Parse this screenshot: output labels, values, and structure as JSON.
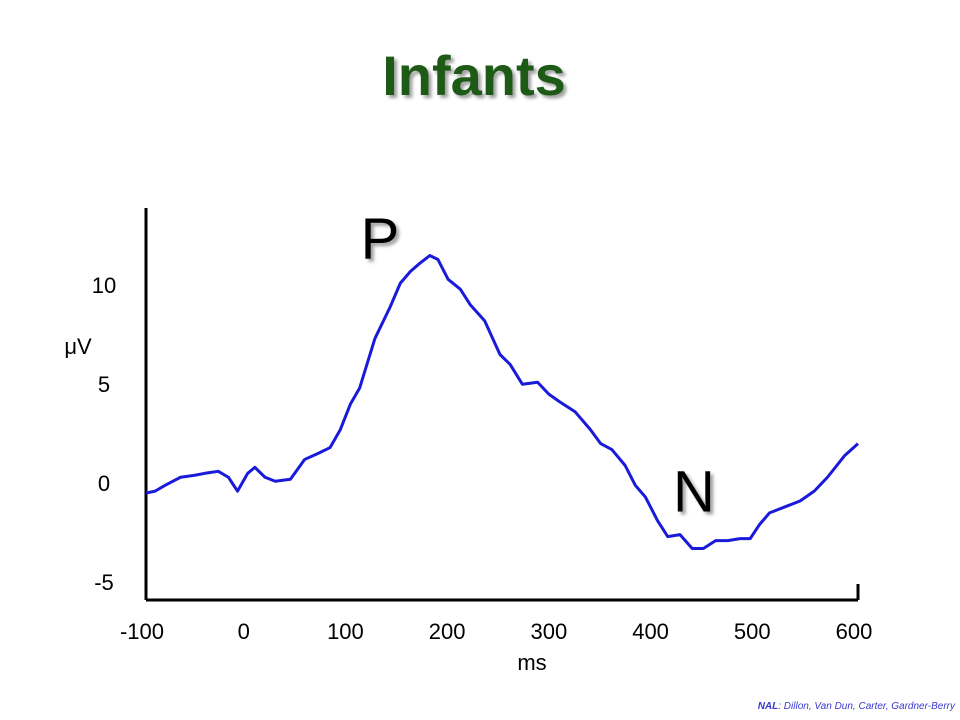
{
  "chart_data": {
    "type": "line",
    "title": "Infants",
    "x_label": "ms",
    "y_label": "μV",
    "annotations": [
      "P",
      "N"
    ],
    "source": {
      "org": "NAL",
      "text": ": Dillon, Van Dun, Carter, Gardner-Berry"
    },
    "xlim": [
      -100,
      600
    ],
    "xticks": [
      -100,
      0,
      100,
      200,
      300,
      400,
      500,
      600
    ],
    "ylim": [
      -5.8,
      14
    ],
    "yticks": [
      -5,
      0,
      5,
      10
    ],
    "x": [
      -100,
      -91,
      -81,
      -66,
      -52,
      -42,
      -29,
      -19,
      -10,
      0,
      7,
      17,
      27,
      42,
      56,
      69,
      81,
      91,
      101,
      110,
      125,
      140,
      150,
      160,
      169,
      179,
      187,
      197,
      209,
      219,
      233,
      248,
      258,
      270,
      285,
      296,
      307,
      322,
      337,
      347,
      358,
      371,
      381,
      391,
      403,
      413,
      425,
      437,
      448,
      460,
      472,
      484,
      494,
      503,
      513,
      528,
      543,
      557,
      570,
      587,
      600
    ],
    "series": [
      {
        "name": "Infants",
        "color": "#1a1adb",
        "values": [
          -0.4,
          -0.3,
          0,
          0.4,
          0.5,
          0.6,
          0.7,
          0.4,
          -0.3,
          0.6,
          0.9,
          0.4,
          0.2,
          0.3,
          1.3,
          1.6,
          1.9,
          2.8,
          4.1,
          4.9,
          7.4,
          9.0,
          10.2,
          10.8,
          11.2,
          11.6,
          11.4,
          10.4,
          9.9,
          9.1,
          8.3,
          6.6,
          6.1,
          5.1,
          5.2,
          4.6,
          4.2,
          3.7,
          2.8,
          2.1,
          1.8,
          1.0,
          0,
          -0.6,
          -1.8,
          -2.6,
          -2.5,
          -3.2,
          -3.2,
          -2.8,
          -2.8,
          -2.7,
          -2.7,
          -2.0,
          -1.4,
          -1.1,
          -0.8,
          -0.3,
          0.4,
          1.5,
          2.1
        ]
      }
    ]
  }
}
